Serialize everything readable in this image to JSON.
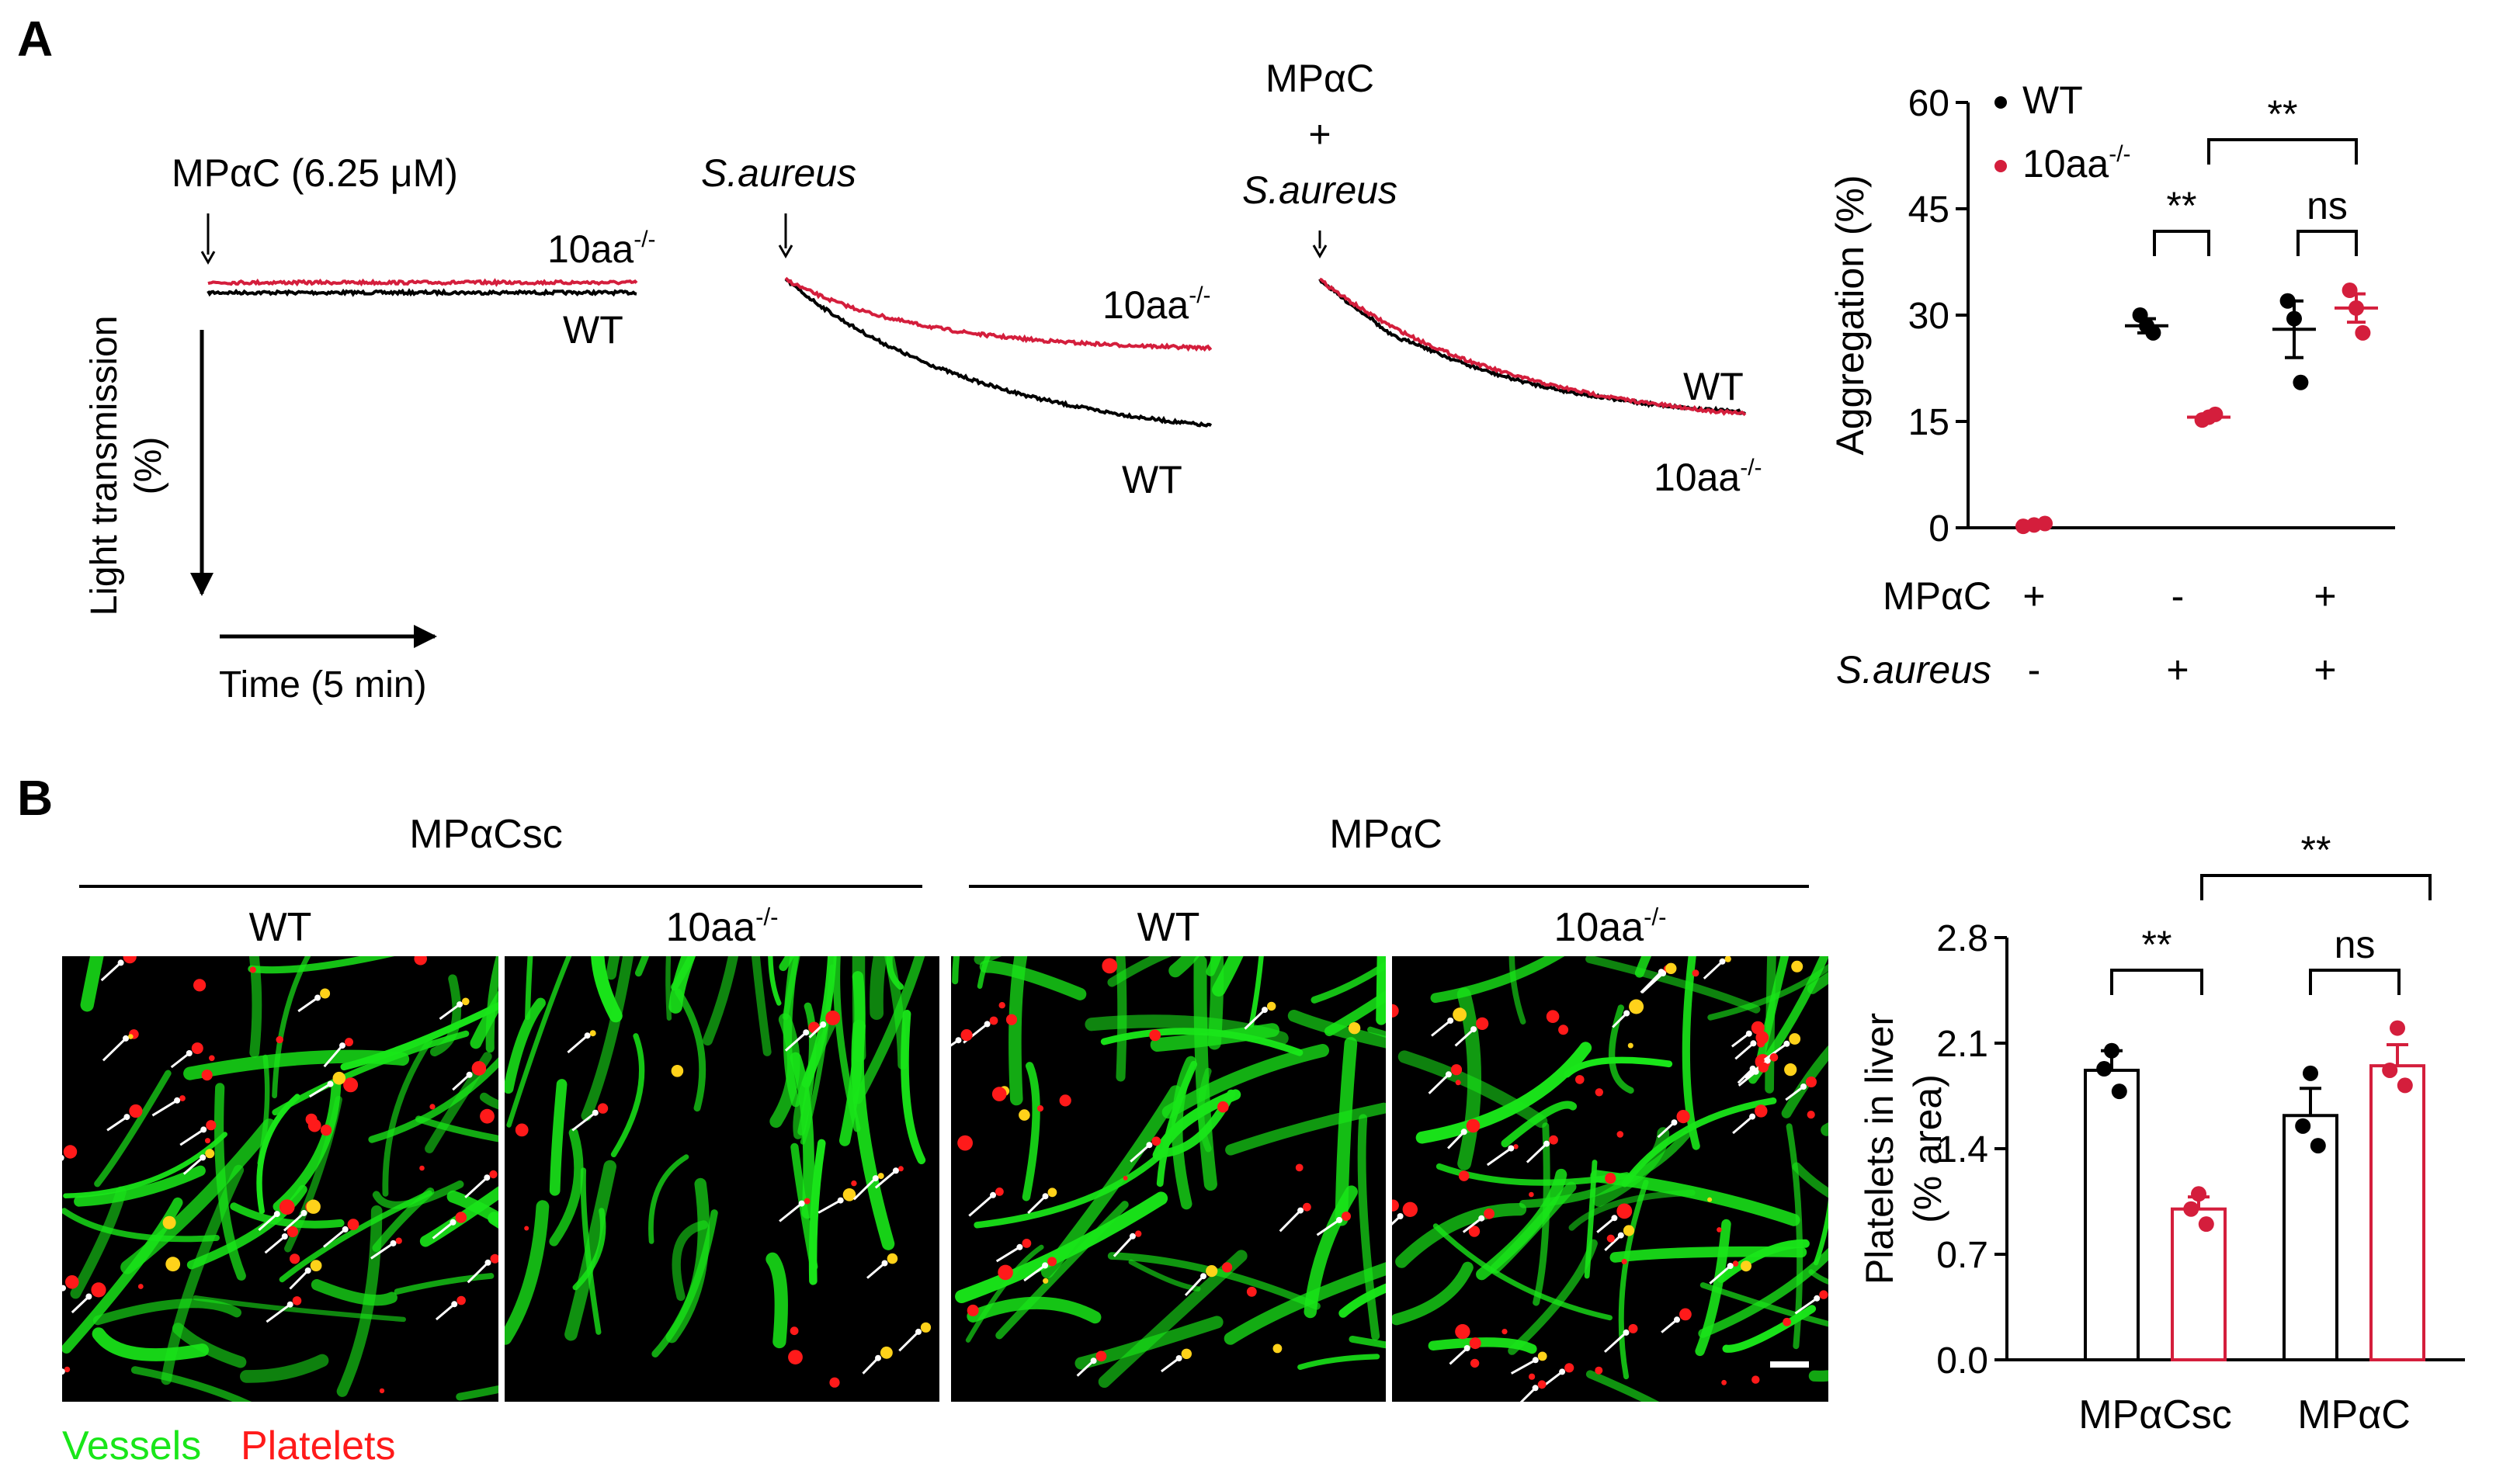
{
  "panel_labels": {
    "a": "A",
    "b": "B"
  },
  "colors": {
    "wt": "#000000",
    "ko": "#d41e3c",
    "vessels": "#19e619",
    "platelets": "#ff1a1a",
    "arrow": "#ffffff"
  },
  "traces": {
    "y_axis_label_line1": "Light transmission",
    "y_axis_label_line2": "(%)",
    "x_axis_label": "Time (5 min)",
    "panels": [
      {
        "annotation": [
          "MPαC (6.25 μM)"
        ],
        "annotation_italic": [
          false
        ],
        "label_upper": "10aa",
        "label_upper_sup": "-/-",
        "label_lower": "WT"
      },
      {
        "annotation": [
          "S.aureus"
        ],
        "annotation_italic": [
          true
        ],
        "label_upper": "10aa",
        "label_upper_sup": "-/-",
        "label_lower": "WT"
      },
      {
        "annotation": [
          "MPαC",
          "+",
          "S.aureus"
        ],
        "annotation_italic": [
          false,
          false,
          true
        ],
        "label_upper": "WT",
        "label_lower": "10aa",
        "label_lower_sup": "-/-"
      }
    ]
  },
  "panel_b": {
    "group_labels": [
      "MPαCsc",
      "MPαC"
    ],
    "image_labels": [
      {
        "text": "WT",
        "sup": ""
      },
      {
        "text": "10aa",
        "sup": "-/-"
      },
      {
        "text": "WT",
        "sup": ""
      },
      {
        "text": "10aa",
        "sup": "-/-"
      }
    ],
    "legend": {
      "vessels": "Vessels",
      "platelets": "Platelets"
    }
  },
  "chart_data": [
    {
      "type": "scatter",
      "title": "",
      "ylabel": "Aggregation (%)",
      "ylim": [
        0,
        60
      ],
      "yticks": [
        "0",
        "15",
        "30",
        "45",
        "60"
      ],
      "legend": [
        {
          "name": "WT",
          "sup": ""
        },
        {
          "name": "10aa",
          "sup": "-/-"
        }
      ],
      "condition_rows": [
        {
          "label": "MPαC",
          "italic": false,
          "values": [
            "+",
            "-",
            "+"
          ]
        },
        {
          "label": "S.aureus",
          "italic": true,
          "values": [
            "-",
            "+",
            "+"
          ]
        }
      ],
      "groups": [
        {
          "index": 0,
          "series": "10aa",
          "mean": 0.4,
          "sem": 0.2,
          "points": [
            0.2,
            0.4,
            0.6
          ]
        },
        {
          "index": 1,
          "series": "WT",
          "mean": 28.5,
          "sem": 1.0,
          "points": [
            30.0,
            28.5,
            27.5
          ]
        },
        {
          "index": 1,
          "series": "10aa",
          "mean": 15.6,
          "sem": 0.4,
          "points": [
            15.2,
            15.6,
            16.0
          ]
        },
        {
          "index": 2,
          "series": "WT",
          "mean": 28.0,
          "sem": 4.0,
          "points": [
            32.0,
            29.5,
            20.5
          ]
        },
        {
          "index": 2,
          "series": "10aa",
          "mean": 31.0,
          "sem": 2.0,
          "points": [
            33.5,
            31.0,
            27.5
          ]
        }
      ],
      "significance": [
        {
          "text": "**",
          "between": "10aa vs WT, S.aureus"
        },
        {
          "text": "ns",
          "between": "10aa vs WT, MPαC + S.aureus"
        },
        {
          "text": "**",
          "between": "S.aureus vs MPαC + S.aureus"
        }
      ]
    },
    {
      "type": "bar",
      "title": "",
      "ylabel_line1": "Platelets in liver",
      "ylabel_line2": "(% area)",
      "ylim": [
        0,
        2.8
      ],
      "yticks": [
        "0.0",
        "0.7",
        "1.4",
        "2.1",
        "2.8"
      ],
      "categories": [
        "MPαCsc",
        "MPαC"
      ],
      "series": [
        {
          "name": "WT",
          "values": [
            1.92,
            1.62
          ],
          "sem": [
            0.13,
            0.18
          ],
          "points": [
            [
              2.05,
              1.93,
              1.78
            ],
            [
              1.9,
              1.55,
              1.42
            ]
          ]
        },
        {
          "name": "10aa",
          "values": [
            1.0,
            1.95
          ],
          "sem": [
            0.08,
            0.14
          ],
          "points": [
            [
              1.1,
              1.0,
              0.9
            ],
            [
              2.2,
              1.92,
              1.82
            ]
          ]
        }
      ],
      "significance": [
        {
          "text": "**",
          "between": "WT vs 10aa, MPαCsc"
        },
        {
          "text": "ns",
          "between": "WT vs 10aa, MPαC"
        },
        {
          "text": "**",
          "between": "MPαCsc vs MPαC (10aa)"
        }
      ]
    }
  ]
}
